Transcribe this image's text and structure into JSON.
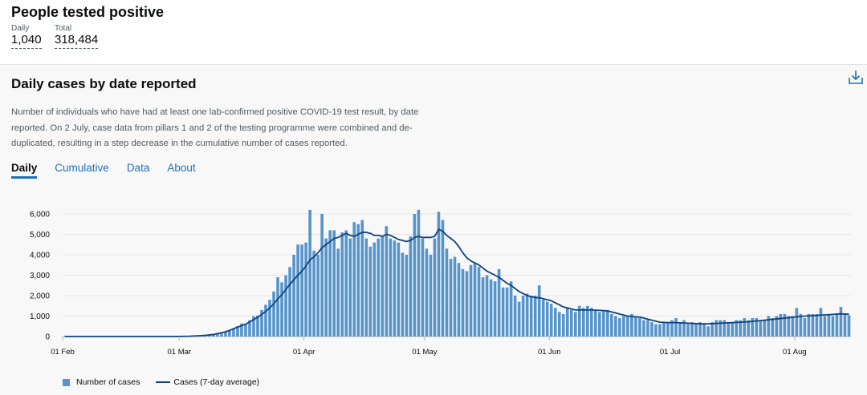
{
  "header": {
    "title": "People tested positive",
    "daily_label": "Daily",
    "daily_value": "1,040",
    "total_label": "Total",
    "total_value": "318,484"
  },
  "card": {
    "title": "Daily cases by date reported",
    "description": "Number of individuals who have had at least one lab-confirmed positive COVID-19 test result, by date reported. On 2 July, case data from pillars 1 and 2 of the testing programme were combined and de-duplicated, resulting in a step decrease in the cumulative number of cases reported.",
    "tabs": [
      {
        "label": "Daily",
        "active": true
      },
      {
        "label": "Cumulative",
        "active": false
      },
      {
        "label": "Data",
        "active": false
      },
      {
        "label": "About",
        "active": false
      }
    ],
    "download_icon": "download-icon"
  },
  "colors": {
    "bar": "#5694ca",
    "line": "#12407f",
    "link": "#1d70b8",
    "grid": "#e6e6e6"
  },
  "chart_data": {
    "type": "bar",
    "x_start": "2020-02-01",
    "x_ticks": [
      "01 Feb",
      "01 Mar",
      "01 Apr",
      "01 May",
      "01 Jun",
      "01 Jul",
      "01 Aug"
    ],
    "x_tick_day_index": [
      0,
      29,
      60,
      90,
      121,
      151,
      182
    ],
    "y_ticks": [
      "0",
      "1,000",
      "2,000",
      "3,000",
      "4,000",
      "5,000",
      "6,000"
    ],
    "ylim": [
      0,
      6000
    ],
    "grid": true,
    "series": [
      {
        "name": "Number of cases",
        "type": "bar",
        "values": [
          0,
          0,
          0,
          0,
          0,
          0,
          0,
          0,
          0,
          0,
          0,
          0,
          0,
          0,
          0,
          0,
          0,
          0,
          0,
          0,
          0,
          0,
          0,
          0,
          0,
          0,
          0,
          0,
          0,
          5,
          15,
          25,
          35,
          45,
          55,
          70,
          100,
          120,
          150,
          180,
          240,
          320,
          400,
          500,
          640,
          620,
          800,
          1000,
          1030,
          1300,
          1550,
          1800,
          2200,
          2900,
          2650,
          3000,
          3400,
          4000,
          4500,
          4500,
          4600,
          6200,
          4200,
          4000,
          6000,
          4800,
          5200,
          5200,
          4300,
          5100,
          5200,
          4800,
          5600,
          5500,
          5700,
          4800,
          4400,
          4600,
          4800,
          4900,
          5400,
          4800,
          4700,
          4600,
          4100,
          4000,
          4900,
          6000,
          6200,
          4800,
          4300,
          4000,
          4800,
          6100,
          5700,
          4300,
          3800,
          3900,
          3600,
          3300,
          3200,
          3500,
          3600,
          3400,
          2900,
          3000,
          2800,
          2700,
          3300,
          2400,
          2400,
          2700,
          2000,
          1700,
          2000,
          2100,
          2000,
          2000,
          2500,
          1800,
          1700,
          1600,
          1400,
          1200,
          1100,
          1400,
          1300,
          1200,
          1500,
          1400,
          1500,
          1400,
          1300,
          1200,
          1300,
          1300,
          1100,
          1000,
          900,
          1000,
          1000,
          1100,
          1000,
          900,
          800,
          800,
          700,
          600,
          600,
          700,
          700,
          800,
          900,
          700,
          800,
          600,
          700,
          600,
          700,
          600,
          500,
          700,
          800,
          800,
          800,
          700,
          700,
          800,
          800,
          900,
          800,
          900,
          900,
          800,
          800,
          1000,
          900,
          1000,
          1100,
          1100,
          1000,
          1000,
          1400,
          1100,
          900,
          1100,
          1100,
          1100,
          1400,
          1000,
          1100,
          1000,
          1100,
          1450,
          1100,
          1040
        ]
      },
      {
        "name": "Cases (7-day average)",
        "type": "line",
        "values": [
          0,
          0,
          0,
          0,
          0,
          0,
          0,
          0,
          0,
          0,
          0,
          0,
          0,
          0,
          0,
          0,
          0,
          0,
          0,
          0,
          0,
          0,
          0,
          0,
          0,
          0,
          0,
          0,
          0,
          5,
          10,
          15,
          25,
          35,
          45,
          60,
          80,
          100,
          140,
          180,
          230,
          300,
          380,
          460,
          530,
          600,
          710,
          830,
          940,
          1080,
          1230,
          1400,
          1600,
          1840,
          2050,
          2300,
          2550,
          2780,
          3000,
          3200,
          3450,
          3750,
          3900,
          4100,
          4350,
          4500,
          4650,
          4800,
          4850,
          4950,
          5050,
          4950,
          4900,
          5000,
          5100,
          5100,
          5050,
          4950,
          4950,
          4900,
          5000,
          4950,
          4850,
          4750,
          4700,
          4650,
          4700,
          4850,
          4900,
          4850,
          4850,
          4850,
          4900,
          5250,
          5150,
          4950,
          4800,
          4650,
          4400,
          4100,
          3850,
          3700,
          3600,
          3500,
          3350,
          3200,
          3100,
          3000,
          2900,
          2750,
          2600,
          2500,
          2350,
          2200,
          2100,
          2000,
          1950,
          1900,
          1900,
          1850,
          1800,
          1750,
          1650,
          1550,
          1450,
          1400,
          1350,
          1300,
          1300,
          1300,
          1300,
          1300,
          1290,
          1280,
          1270,
          1250,
          1200,
          1150,
          1100,
          1050,
          1000,
          980,
          960,
          950,
          900,
          850,
          800,
          750,
          700,
          690,
          680,
          680,
          680,
          670,
          660,
          650,
          640,
          630,
          620,
          620,
          620,
          630,
          640,
          650,
          660,
          670,
          680,
          690,
          700,
          710,
          720,
          740,
          760,
          780,
          800,
          820,
          840,
          860,
          880,
          900,
          920,
          940,
          960,
          980,
          1000,
          1010,
          1020,
          1030,
          1050,
          1060,
          1070,
          1080,
          1100,
          1110,
          1100,
          1090
        ]
      }
    ]
  }
}
